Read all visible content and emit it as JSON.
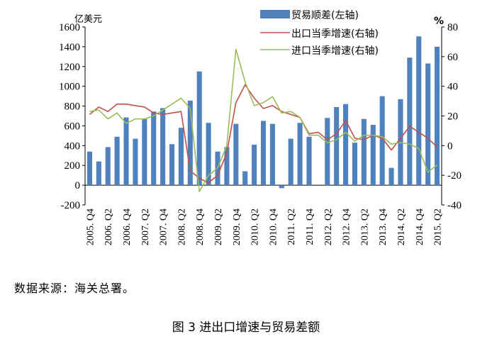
{
  "chart_data": {
    "type": "bar+line",
    "categories": [
      "2005.Q4",
      "2006.Q1",
      "2006.Q2",
      "2006.Q3",
      "2006.Q4",
      "2007.Q1",
      "2007.Q2",
      "2007.Q3",
      "2007.Q4",
      "2008.Q1",
      "2008.Q2",
      "2008.Q3",
      "2008.Q4",
      "2009.Q1",
      "2009.Q2",
      "2009.Q3",
      "2009.Q4",
      "2010.Q1",
      "2010.Q2",
      "2010.Q3",
      "2010.Q4",
      "2011.Q1",
      "2011.Q2",
      "2011.Q3",
      "2011.Q4",
      "2012.Q1",
      "2012.Q2",
      "2012.Q3",
      "2012.Q4",
      "2013.Q1",
      "2013.Q2",
      "2013.Q3",
      "2013.Q4",
      "2014.Q1",
      "2014.Q2",
      "2014.Q3",
      "2014.Q4",
      "2015.Q1",
      "2015.Q2"
    ],
    "x_tick_labels": [
      "2005. Q4",
      "2006. Q2",
      "2006. Q4",
      "2007. Q2",
      "2007. Q4",
      "2008. Q2",
      "2008. Q4",
      "2009. Q2",
      "2009. Q4",
      "2010. Q2",
      "2010. Q4",
      "2011. Q2",
      "2011. Q4",
      "2012. Q2",
      "2012. Q4",
      "2013. Q2",
      "2013. Q4",
      "2014. Q2",
      "2014. Q4",
      "2015. Q2"
    ],
    "left_axis": {
      "unit": "亿美元",
      "ylim": [
        -200,
        1600
      ],
      "ticks": [
        "-200",
        "0",
        "200",
        "400",
        "600",
        "800",
        "1000",
        "1200",
        "1400",
        "1600"
      ]
    },
    "right_axis": {
      "unit": "%",
      "ylim": [
        -40,
        80
      ],
      "ticks": [
        "-40",
        "-20",
        "0",
        "20",
        "40",
        "60",
        "80"
      ]
    },
    "series": [
      {
        "name": "贸易顺差(左轴)",
        "kind": "bar",
        "axis": "left",
        "color": "#4F81BD",
        "values": [
          340,
          240,
          385,
          490,
          685,
          470,
          670,
          745,
          780,
          415,
          580,
          855,
          1150,
          630,
          340,
          385,
          620,
          140,
          410,
          650,
          620,
          -30,
          470,
          630,
          490,
          0,
          680,
          790,
          820,
          430,
          670,
          610,
          900,
          175,
          870,
          1290,
          1505,
          1230,
          1400
        ]
      },
      {
        "name": "出口当季增速(右轴)",
        "kind": "line",
        "axis": "right",
        "color": "#C0504D",
        "values": [
          21,
          26,
          23,
          28,
          28,
          27,
          26,
          22,
          21,
          22,
          23,
          -17,
          -22,
          -25,
          -20,
          -5,
          29,
          41,
          32,
          25,
          27,
          23,
          21,
          19,
          8,
          9,
          4,
          8,
          17,
          5,
          4,
          7,
          5,
          -3,
          5,
          13,
          9,
          5,
          -1
        ]
      },
      {
        "name": "进口当季增速(右轴)",
        "kind": "line",
        "axis": "right",
        "color": "#9BBB59",
        "values": [
          23,
          24,
          18,
          22,
          15,
          18,
          18,
          20,
          24,
          28,
          32,
          25,
          -31,
          -20,
          -15,
          0,
          65,
          43,
          27,
          29,
          33,
          22,
          23,
          19,
          7,
          7,
          2,
          4,
          9,
          3,
          7,
          7,
          6,
          1,
          2,
          1,
          -2,
          -18,
          -13
        ]
      }
    ],
    "legend_position": "top",
    "grid": false
  },
  "texts": {
    "source": "数据来源：海关总署。",
    "caption": "图 3 进出口增速与贸易差额"
  }
}
